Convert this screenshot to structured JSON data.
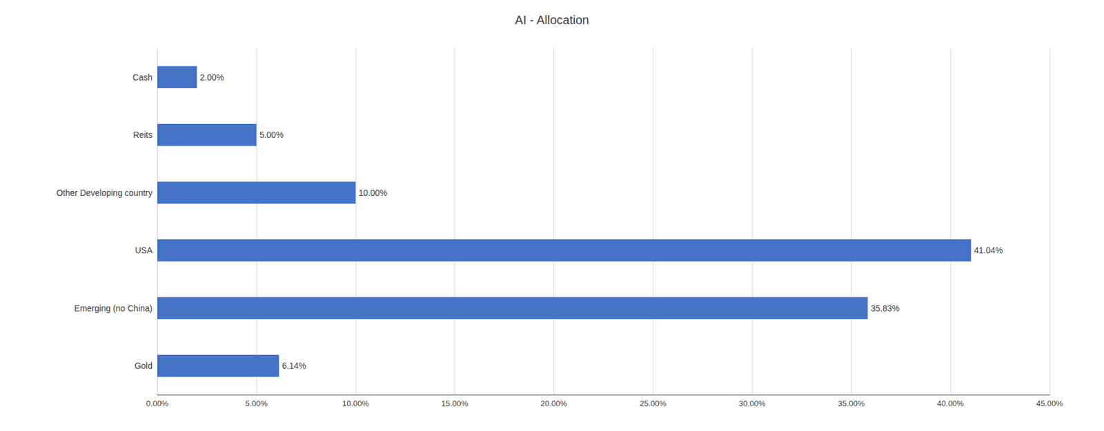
{
  "chart_data": {
    "type": "bar",
    "title": "AI - Allocation",
    "orientation": "horizontal",
    "categories": [
      "Gold",
      "Emerging (no China)",
      "USA",
      "Other Developing country",
      "Reits",
      "Cash"
    ],
    "values": [
      6.14,
      35.83,
      41.04,
      10.0,
      5.0,
      2.0
    ],
    "value_labels": [
      "6.14%",
      "35.83%",
      "41.04%",
      "10.00%",
      "5.00%",
      "2.00%"
    ],
    "color": "#4472c4",
    "xlim": [
      0,
      45
    ],
    "xticks": [
      {
        "value": 0,
        "label": "0.00%"
      },
      {
        "value": 5,
        "label": "5.00%"
      },
      {
        "value": 10,
        "label": "10.00%"
      },
      {
        "value": 15,
        "label": "15.00%"
      },
      {
        "value": 20,
        "label": "20.00%"
      },
      {
        "value": 25,
        "label": "25.00%"
      },
      {
        "value": 30,
        "label": "30.00%"
      },
      {
        "value": 35,
        "label": "35.00%"
      },
      {
        "value": 40,
        "label": "40.00%"
      },
      {
        "value": 45,
        "label": "45.00%"
      }
    ],
    "grid": true,
    "data_labels": true
  }
}
